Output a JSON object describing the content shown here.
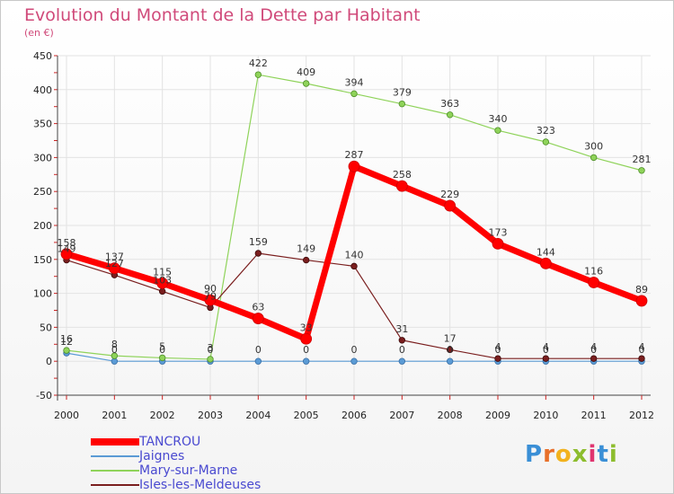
{
  "title": "Evolution du Montant de la Dette par Habitant",
  "unit": "(en €)",
  "logo": {
    "text": "Proxiti",
    "colors": [
      "#3a8fd6",
      "#e8702a",
      "#f2b21d",
      "#8dbd2e",
      "#e0356f",
      "#3a8fd6",
      "#8dbd2e"
    ]
  },
  "chart_data": {
    "type": "line",
    "title": "Evolution du Montant de la Dette par Habitant",
    "ylabel": "(en €)",
    "xlabel": "",
    "x": [
      "2000",
      "2001",
      "2002",
      "2003",
      "2004",
      "2005",
      "2006",
      "2007",
      "2008",
      "2009",
      "2010",
      "2011",
      "2012"
    ],
    "ylim": [
      -50,
      450
    ],
    "yticks": [
      "-50",
      "0",
      "50",
      "100",
      "150",
      "200",
      "250",
      "300",
      "350",
      "400",
      "450"
    ],
    "grid": true,
    "legend_position": "bottom-left",
    "series": [
      {
        "name": "TANCROU",
        "color": "#ff0000",
        "values": [
          158,
          137,
          115,
          90,
          63,
          33,
          287,
          258,
          229,
          173,
          144,
          116,
          89
        ],
        "labels": [
          "158",
          "137",
          "115",
          "90",
          "63",
          "33",
          "287",
          "258",
          "229",
          "173",
          "144",
          "116",
          "89"
        ]
      },
      {
        "name": "Jaignes",
        "color": "#5b9bd5",
        "values": [
          12,
          0,
          0,
          0,
          0,
          0,
          0,
          0,
          0,
          0,
          0,
          0,
          0
        ],
        "labels": [
          "12",
          "0",
          "0",
          "0",
          "0",
          "0",
          "0",
          "0",
          "0",
          "0",
          "0",
          "0",
          "0"
        ]
      },
      {
        "name": "Mary-sur-Marne",
        "color": "#8fd35a",
        "values": [
          16,
          8,
          5,
          3,
          422,
          409,
          394,
          379,
          363,
          340,
          323,
          300,
          281
        ],
        "labels": [
          "16",
          "8",
          "5",
          "3",
          "422",
          "409",
          "394",
          "379",
          "363",
          "340",
          "323",
          "300",
          "281"
        ]
      },
      {
        "name": "Isles-les-Meldeuses",
        "color": "#7a1e1e",
        "values": [
          149,
          127,
          103,
          79,
          159,
          149,
          140,
          31,
          17,
          4,
          4,
          4,
          4
        ],
        "labels": [
          "149",
          "127",
          "103",
          "79",
          "159",
          "149",
          "140",
          "31",
          "17",
          "4",
          "4",
          "4",
          "4"
        ]
      }
    ]
  }
}
